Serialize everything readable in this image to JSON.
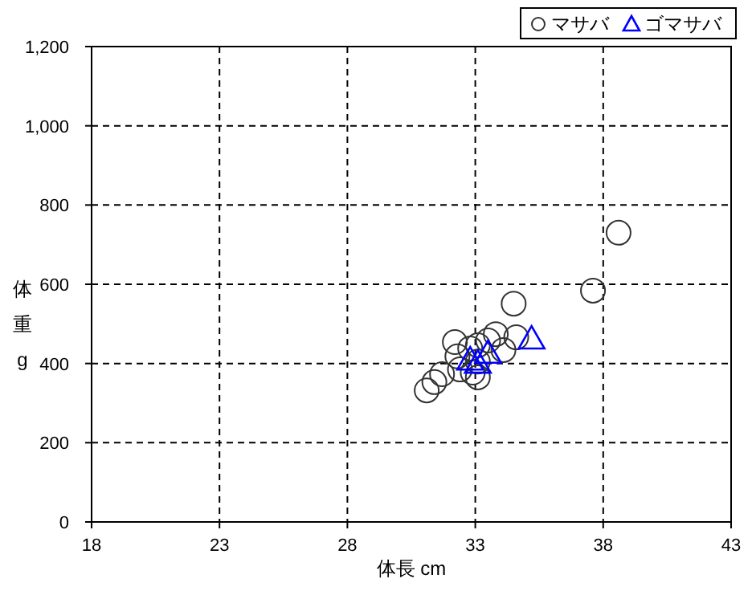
{
  "chart_data": {
    "type": "scatter",
    "xlabel": "体長 cm",
    "ylabel": "体重 g",
    "grid": true,
    "legend": "top right",
    "xlim": [
      18,
      43
    ],
    "xticks": [
      18,
      23,
      28,
      33,
      38,
      43
    ],
    "ylim": [
      0,
      1200
    ],
    "yticks": [
      0,
      200,
      400,
      600,
      800,
      {
        "value": 1000,
        "label": "1,000"
      },
      {
        "value": 1200,
        "label": "1,200"
      }
    ],
    "series": [
      {
        "name": "マサバ",
        "color": "#333333",
        "marker": "circle",
        "x": [
          38.6,
          37.6,
          34.5,
          31.1,
          31.4,
          31.7,
          32.2,
          32.3,
          32.4,
          32.9,
          33.1,
          33.8,
          34.1,
          34.6,
          33.1,
          33.5,
          32.8,
          33.1
        ],
        "values": [
          730,
          584,
          551,
          332,
          353,
          373,
          454,
          418,
          385,
          377,
          405,
          474,
          434,
          466,
          446,
          458,
          438,
          365
        ]
      },
      {
        "name": "ゴマサバ",
        "color": "#0000ff",
        "marker": "triangle",
        "x": [
          35.2,
          33.5,
          32.8,
          33.1
        ],
        "values": [
          458,
          422,
          405,
          397
        ]
      }
    ]
  }
}
